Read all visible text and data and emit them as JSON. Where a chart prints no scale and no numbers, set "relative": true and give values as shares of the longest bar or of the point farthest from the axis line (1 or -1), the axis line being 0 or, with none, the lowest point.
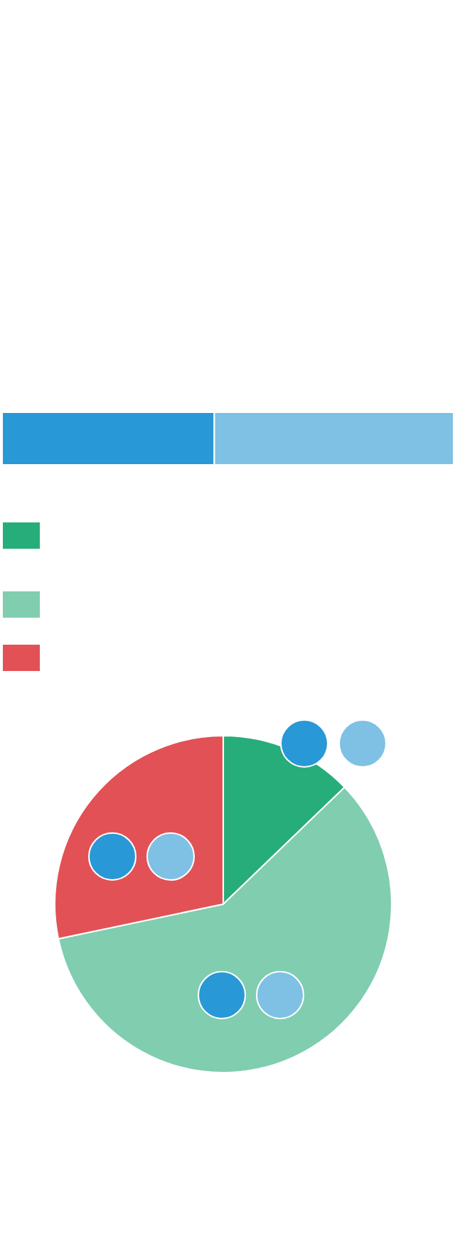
{
  "chart_data": [
    {
      "type": "bar",
      "orientation": "horizontal",
      "stacked": true,
      "relative": true,
      "categories": [
        null
      ],
      "series": [
        {
          "color": "#2898d6",
          "values": [
            0.47
          ]
        },
        {
          "color": "#7fc0e5",
          "values": [
            0.53
          ]
        }
      ]
    },
    {
      "type": "pie",
      "categories": [
        null,
        null,
        null
      ],
      "values": [
        12.8,
        58.9,
        28.3
      ],
      "colors": [
        "#27ad7a",
        "#80cdb0",
        "#e25155"
      ]
    }
  ]
}
